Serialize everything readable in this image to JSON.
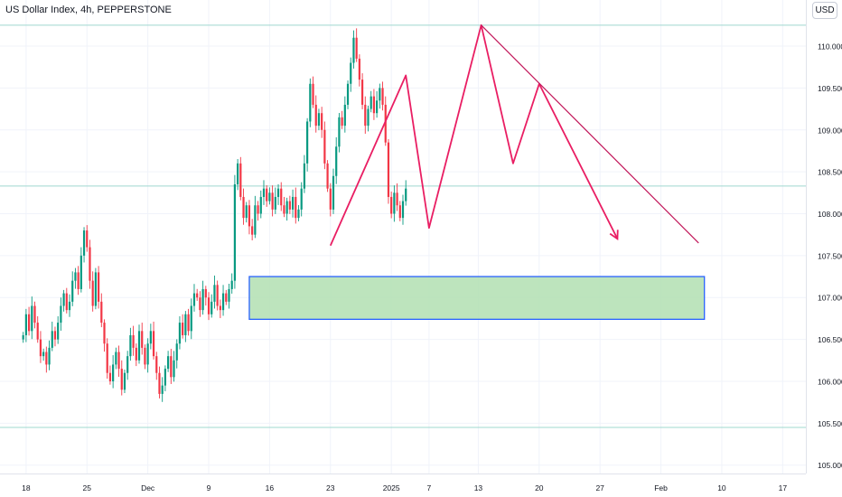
{
  "header": {
    "symbol": "US Dollar Index, 4h, PEPPERSTONE"
  },
  "currency_button": "USD",
  "colors": {
    "up": "#089981",
    "down": "#f23645",
    "pattern": "#e91e63",
    "zone_fill": "#b2dfb2",
    "zone_border": "#2962ff",
    "trendline": "#c2185b",
    "hline": "#9fd8cf"
  },
  "chart_data": {
    "type": "candlestick",
    "title": "US Dollar Index, 4h, PEPPERSTONE",
    "y_ticks": [
      110.0,
      109.5,
      109.0,
      108.5,
      108.0,
      107.5,
      107.0,
      106.5,
      106.0,
      105.5,
      105.0
    ],
    "y_tick_labels": [
      "110.000",
      "109.500",
      "109.000",
      "108.500",
      "108.000",
      "107.500",
      "107.000",
      "106.500",
      "106.000",
      "105.500",
      "105.000"
    ],
    "ylim": [
      104.9,
      110.55
    ],
    "x_tick_labels": [
      {
        "label": "18",
        "t": 1
      },
      {
        "label": "25",
        "t": 22
      },
      {
        "label": "Dec",
        "t": 43
      },
      {
        "label": "9",
        "t": 64
      },
      {
        "label": "16",
        "t": 85
      },
      {
        "label": "23",
        "t": 106
      },
      {
        "label": "2025",
        "t": 127
      },
      {
        "label": "7",
        "t": 140
      },
      {
        "label": "13",
        "t": 157
      },
      {
        "label": "20",
        "t": 178
      },
      {
        "label": "27",
        "t": 199
      },
      {
        "label": "Feb",
        "t": 220
      },
      {
        "label": "10",
        "t": 241
      },
      {
        "label": "17",
        "t": 262
      }
    ],
    "xlim": [
      -8,
      270
    ],
    "horizontal_lines": [
      110.25,
      108.33,
      105.45
    ],
    "demand_zone": {
      "t_start": 78,
      "t_end": 235,
      "top": 107.25,
      "bottom": 106.74
    },
    "pattern_path": [
      [
        106,
        107.62
      ],
      [
        132,
        109.65
      ],
      [
        140,
        107.83
      ],
      [
        158,
        110.25
      ],
      [
        169,
        108.6
      ],
      [
        178,
        109.55
      ],
      [
        205,
        107.7
      ]
    ],
    "trendline": [
      [
        158,
        110.25
      ],
      [
        233,
        107.65
      ]
    ],
    "closes": [
      106.55,
      106.8,
      106.6,
      106.9,
      106.7,
      106.5,
      106.3,
      106.35,
      106.2,
      106.4,
      106.6,
      106.5,
      106.7,
      106.9,
      107.05,
      106.85,
      106.95,
      107.2,
      107.3,
      107.1,
      107.5,
      107.8,
      107.6,
      107.2,
      106.9,
      107.3,
      106.95,
      106.7,
      106.45,
      106.1,
      106.0,
      106.2,
      106.35,
      106.15,
      105.9,
      106.1,
      106.3,
      106.55,
      106.4,
      106.25,
      106.6,
      106.4,
      106.2,
      106.45,
      106.6,
      106.3,
      106.1,
      105.85,
      105.95,
      106.15,
      106.3,
      106.05,
      106.25,
      106.45,
      106.7,
      106.55,
      106.8,
      106.6,
      106.9,
      107.05,
      107.0,
      106.85,
      107.1,
      107.0,
      106.8,
      106.95,
      107.15,
      106.9,
      106.85,
      107.05,
      106.95,
      107.1,
      107.2,
      108.35,
      108.6,
      108.2,
      107.95,
      108.1,
      107.85,
      107.75,
      108.1,
      108.0,
      108.2,
      108.3,
      108.15,
      108.25,
      108.05,
      108.2,
      108.3,
      108.1,
      108.0,
      108.15,
      108.05,
      108.2,
      107.95,
      108.05,
      108.3,
      108.6,
      109.1,
      109.55,
      109.3,
      109.05,
      109.2,
      109.0,
      108.6,
      108.3,
      108.05,
      108.45,
      108.8,
      109.15,
      109.05,
      109.3,
      109.55,
      109.8,
      110.1,
      109.85,
      109.6,
      109.3,
      109.05,
      109.25,
      109.4,
      109.2,
      109.35,
      109.5,
      109.3,
      108.85,
      108.2,
      108.0,
      108.25,
      108.1,
      107.95,
      108.15,
      108.3
    ]
  }
}
